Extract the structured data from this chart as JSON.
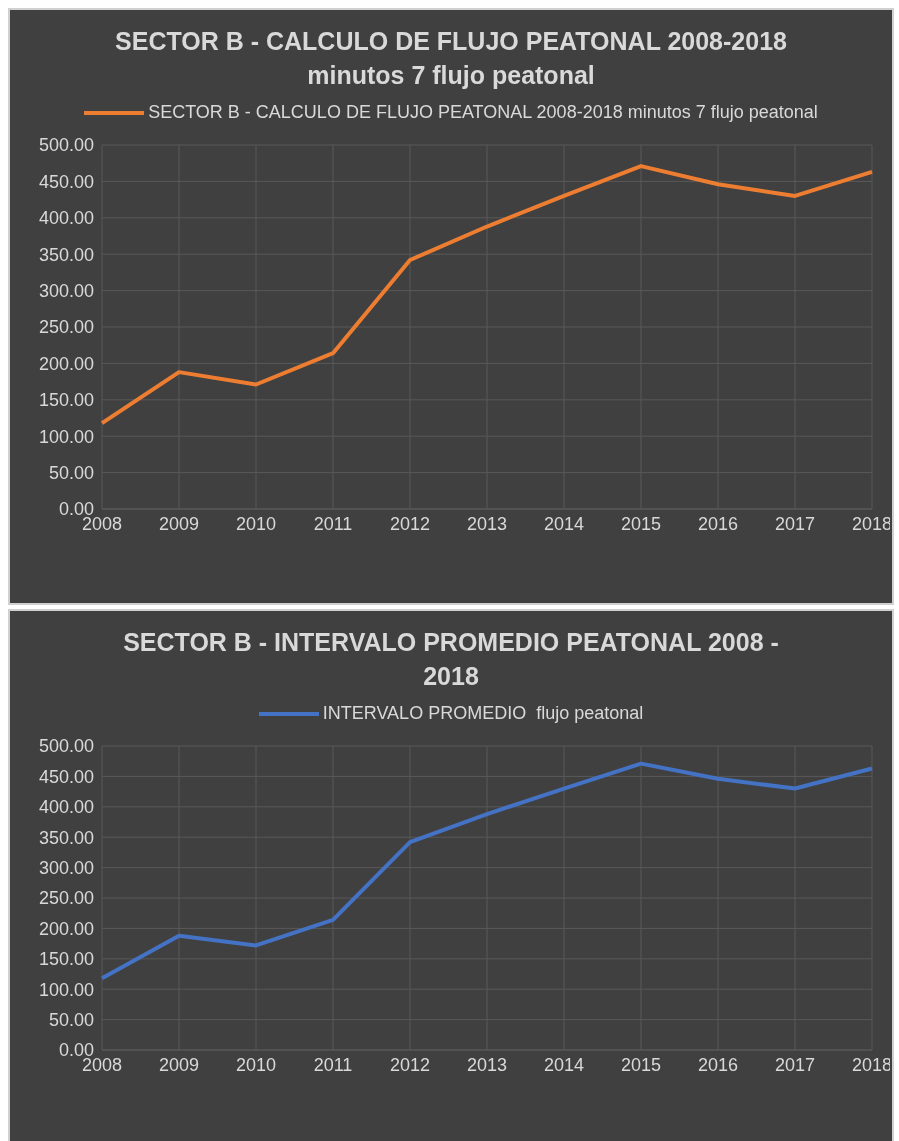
{
  "chart_data": [
    {
      "type": "line",
      "title": "SECTOR B - CALCULO DE FLUJO PEATONAL 2008-2018 minutos 7 flujo peatonal",
      "categories": [
        "2008",
        "2009",
        "2010",
        "2011",
        "2012",
        "2013",
        "2014",
        "2015",
        "2016",
        "2017",
        "2018"
      ],
      "series": [
        {
          "name": "SECTOR B - CALCULO DE FLUJO PEATONAL 2008-2018 minutos 7 flujo peatonal",
          "color": "#ed7d31",
          "values": [
            118,
            188,
            171,
            214,
            342,
            388,
            430,
            471,
            446,
            430,
            463
          ]
        }
      ],
      "ylim": [
        0,
        500
      ],
      "yticks": [
        {
          "value": 0,
          "label": "0.00"
        },
        {
          "value": 50,
          "label": "50.00"
        },
        {
          "value": 100,
          "label": "100.00"
        },
        {
          "value": 150,
          "label": "150.00"
        },
        {
          "value": 200,
          "label": "200.00"
        },
        {
          "value": 250,
          "label": "250.00"
        },
        {
          "value": 300,
          "label": "300.00"
        },
        {
          "value": 350,
          "label": "350.00"
        },
        {
          "value": 400,
          "label": "400.00"
        },
        {
          "value": 450,
          "label": "450.00"
        },
        {
          "value": 500,
          "label": "500.00"
        }
      ],
      "grid": true,
      "legend": "top",
      "marker": "none",
      "line_style": "solid"
    },
    {
      "type": "line",
      "title": "SECTOR B - INTERVALO PROMEDIO PEATONAL 2008 - 2018",
      "categories": [
        "2008",
        "2009",
        "2010",
        "2011",
        "2012",
        "2013",
        "2014",
        "2015",
        "2016",
        "2017",
        "2018"
      ],
      "series": [
        {
          "name": "INTERVALO PROMEDIO  flujo peatonal",
          "color": "#4472c4",
          "values": [
            118,
            188,
            172,
            214,
            342,
            388,
            430,
            471,
            446,
            430,
            463
          ]
        }
      ],
      "ylim": [
        0,
        500
      ],
      "yticks": [
        {
          "value": 0,
          "label": "0.00"
        },
        {
          "value": 50,
          "label": "50.00"
        },
        {
          "value": 100,
          "label": "100.00"
        },
        {
          "value": 150,
          "label": "150.00"
        },
        {
          "value": 200,
          "label": "200.00"
        },
        {
          "value": 250,
          "label": "250.00"
        },
        {
          "value": 300,
          "label": "300.00"
        },
        {
          "value": 350,
          "label": "350.00"
        },
        {
          "value": 400,
          "label": "400.00"
        },
        {
          "value": 450,
          "label": "450.00"
        },
        {
          "value": 500,
          "label": "500.00"
        }
      ],
      "grid": true,
      "legend": "top",
      "marker": "none",
      "line_style": "solid"
    }
  ]
}
